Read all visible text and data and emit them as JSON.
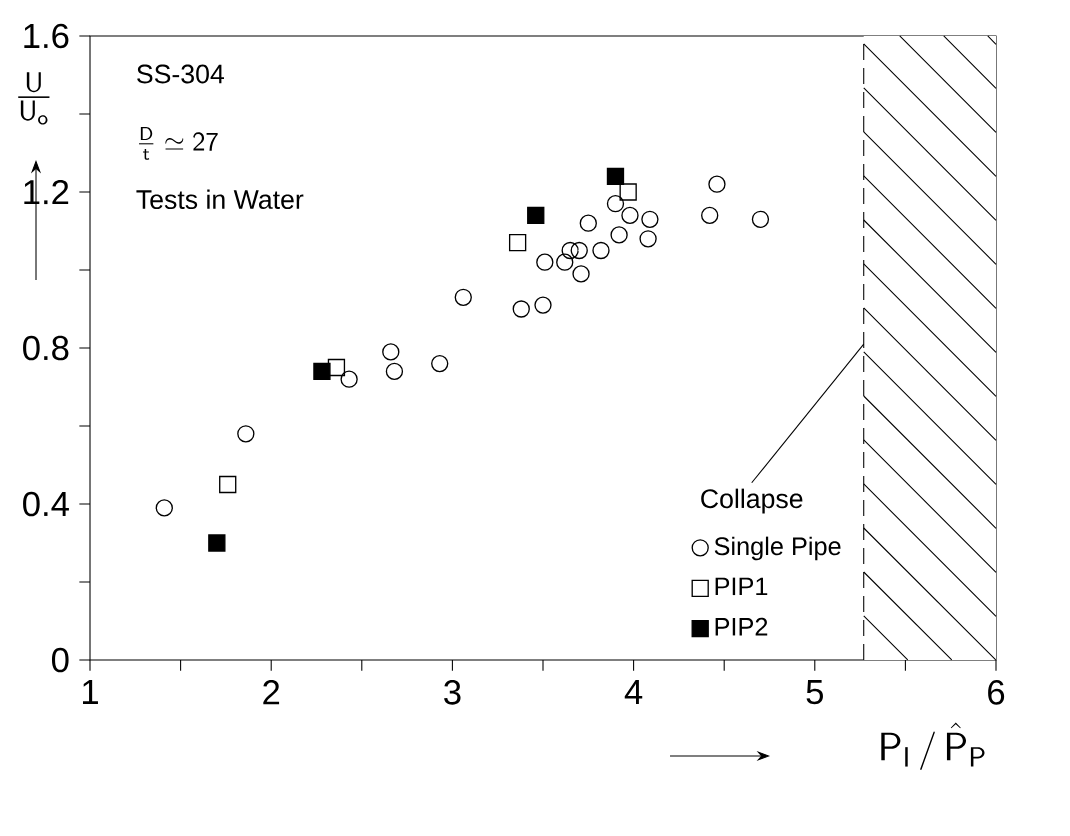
{
  "chart_data": {
    "type": "scatter",
    "xlabel": "\\mathsf{P_I} \\,/\\, \\hat{\\mathsf{P}}_\\mathsf{P}",
    "ylabel": "\\frac{\\mathsf{U}}{\\mathsf{U_o}}",
    "xlim": [
      1,
      6
    ],
    "ylim": [
      0,
      1.6
    ],
    "xticks": [
      1,
      {
        "value": 1.5,
        "label": null
      },
      2,
      {
        "value": 2.5,
        "label": null
      },
      3,
      {
        "value": 3.5,
        "label": null
      },
      4,
      {
        "value": 4.5,
        "label": null
      },
      5,
      {
        "value": 5.5,
        "label": null
      },
      6
    ],
    "yticks": [
      0,
      {
        "value": 0.2,
        "label": null
      },
      0.4,
      {
        "value": 0.6,
        "label": null
      },
      0.8,
      {
        "value": 1.0,
        "label": null
      },
      1.2,
      {
        "value": 1.4,
        "label": null
      },
      1.6
    ],
    "grid": false,
    "legend": "bottom right",
    "annotations": [
      "SS-304",
      "\\frac{\\mathsf{D}}{\\mathsf{t}} \\simeq \\mathsf{27}",
      "Tests in Water",
      {
        "text": "Collapse",
        "x": 5.27,
        "y": 0.81
      }
    ],
    "ref_lines": [
      {
        "axis": "x",
        "value": 5.27,
        "line_style": "dashed",
        "color": "#000000"
      }
    ],
    "bands": [
      {
        "axis": "x",
        "from": 5.27,
        "to": 6,
        "color": "#ffffff"
      }
    ],
    "series": [
      {
        "name": "Single Pipe",
        "marker": "circle",
        "color": "#000000",
        "x": [
          1.41,
          1.86,
          2.43,
          2.66,
          2.68,
          2.93,
          3.06,
          3.38,
          3.5,
          3.51,
          3.62,
          3.65,
          3.7,
          3.71,
          3.75,
          3.82,
          3.9,
          3.92,
          3.98,
          4.08,
          4.09,
          4.42,
          4.46,
          4.7
        ],
        "values": [
          0.39,
          0.58,
          0.72,
          0.79,
          0.74,
          0.76,
          0.93,
          0.9,
          0.91,
          1.02,
          1.02,
          1.05,
          1.05,
          0.99,
          1.12,
          1.05,
          1.17,
          1.09,
          1.14,
          1.08,
          1.13,
          1.14,
          1.22,
          1.13
        ]
      },
      {
        "name": "PIP1",
        "marker": "square",
        "color": "#000000",
        "x": [
          1.76,
          2.36,
          3.36,
          3.97
        ],
        "values": [
          0.45,
          0.75,
          1.07,
          1.2
        ]
      },
      {
        "name": "PIP2",
        "marker": "square",
        "color": "#000000",
        "x": [
          1.7,
          2.28,
          3.46,
          3.9
        ],
        "values": [
          0.3,
          0.74,
          1.14,
          1.24
        ]
      }
    ]
  }
}
